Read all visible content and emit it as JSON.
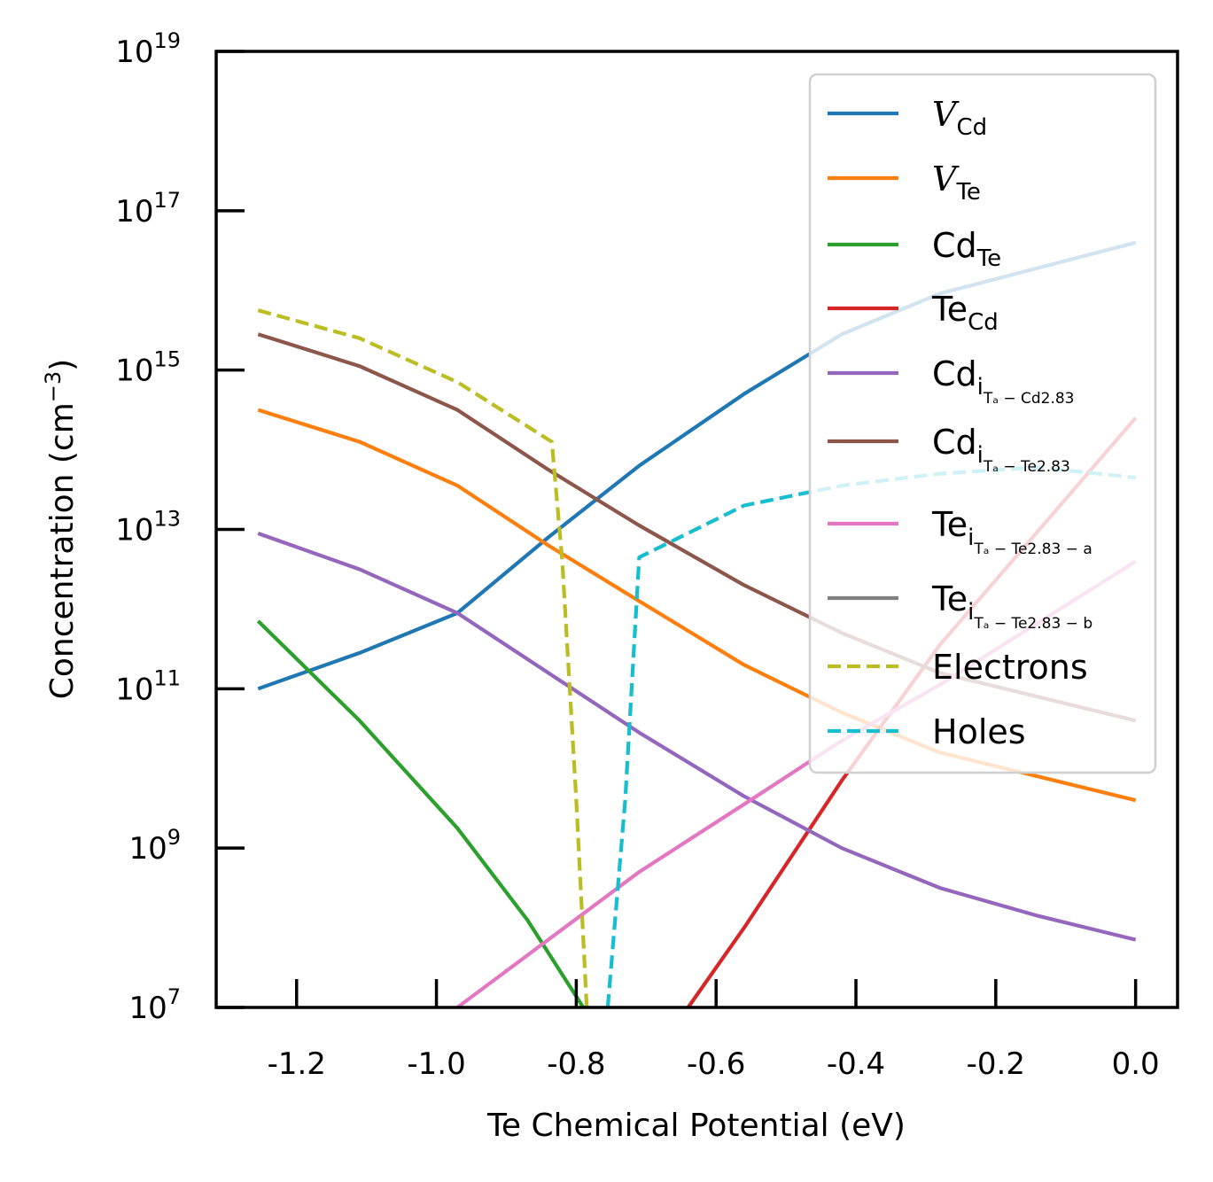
{
  "chart_data": {
    "type": "line",
    "xlabel": "Te Chemical Potential (eV)",
    "ylabel": "Concentration (cm",
    "ylabel_exp": "−3",
    "ylabel_close": ")",
    "xlim": [
      -1.315,
      0.06
    ],
    "ylim_log10": [
      7,
      19
    ],
    "y_scale": "log",
    "grid": false,
    "legend_position": "top-right",
    "x_ticks": [
      {
        "v": -1.2,
        "label": "-1.2"
      },
      {
        "v": -1.0,
        "label": "-1.0"
      },
      {
        "v": -0.8,
        "label": "-0.8"
      },
      {
        "v": -0.6,
        "label": "-0.6"
      },
      {
        "v": -0.4,
        "label": "-0.4"
      },
      {
        "v": -0.2,
        "label": "-0.2"
      },
      {
        "v": 0.0,
        "label": "0.0"
      }
    ],
    "y_ticks": [
      {
        "exp": 7,
        "base": "10",
        "sup": "7"
      },
      {
        "exp": 9,
        "base": "10",
        "sup": "9"
      },
      {
        "exp": 11,
        "base": "10",
        "sup": "11"
      },
      {
        "exp": 13,
        "base": "10",
        "sup": "13"
      },
      {
        "exp": 15,
        "base": "10",
        "sup": "15"
      },
      {
        "exp": 17,
        "base": "10",
        "sup": "17"
      },
      {
        "exp": 19,
        "base": "10",
        "sup": "19"
      }
    ],
    "series": [
      {
        "key": "v_cd",
        "label_main": "V",
        "label_italic": true,
        "label_sub": "Cd",
        "label_sub2": "",
        "color": "#1f77b4",
        "dash": false,
        "points": [
          [
            -1.255,
            11.0
          ],
          [
            -1.11,
            11.45
          ],
          [
            -0.97,
            11.95
          ],
          [
            -0.84,
            12.9
          ],
          [
            -0.71,
            13.8
          ],
          [
            -0.56,
            14.7
          ],
          [
            -0.42,
            15.45
          ],
          [
            -0.28,
            15.96
          ],
          [
            0.0,
            16.6
          ]
        ]
      },
      {
        "key": "v_te",
        "label_main": "V",
        "label_italic": true,
        "label_sub": "Te",
        "label_sub2": "",
        "color": "#ff7f0e",
        "dash": false,
        "points": [
          [
            -1.255,
            14.5
          ],
          [
            -1.11,
            14.1
          ],
          [
            -0.97,
            13.55
          ],
          [
            -0.84,
            12.8
          ],
          [
            -0.71,
            12.1
          ],
          [
            -0.56,
            11.3
          ],
          [
            -0.42,
            10.7
          ],
          [
            -0.28,
            10.2
          ],
          [
            0.0,
            9.6
          ]
        ]
      },
      {
        "key": "cd_te",
        "label_main": "Cd",
        "label_italic": false,
        "label_sub": "Te",
        "label_sub2": "",
        "color": "#2ca02c",
        "dash": false,
        "points": [
          [
            -1.255,
            11.85
          ],
          [
            -1.11,
            10.6
          ],
          [
            -0.97,
            9.25
          ],
          [
            -0.87,
            8.1
          ],
          [
            -0.79,
            7.0
          ]
        ]
      },
      {
        "key": "te_cd",
        "label_main": "Te",
        "label_italic": false,
        "label_sub": "Cd",
        "label_sub2": "",
        "color": "#d62728",
        "dash": false,
        "points": [
          [
            -0.64,
            7.0
          ],
          [
            -0.56,
            8.0
          ],
          [
            -0.42,
            9.85
          ],
          [
            -0.28,
            11.55
          ],
          [
            0.0,
            14.4
          ]
        ]
      },
      {
        "key": "cd_i_cd",
        "label_main": "Cd",
        "label_italic": false,
        "label_sub": "i",
        "label_sub2": "Tₐ − Cd2.83",
        "color": "#9467bd",
        "dash": false,
        "points": [
          [
            -1.255,
            12.95
          ],
          [
            -1.11,
            12.5
          ],
          [
            -0.97,
            11.95
          ],
          [
            -0.84,
            11.2
          ],
          [
            -0.71,
            10.45
          ],
          [
            -0.56,
            9.65
          ],
          [
            -0.42,
            9.0
          ],
          [
            -0.28,
            8.5
          ],
          [
            -0.14,
            8.15
          ],
          [
            0.0,
            7.85
          ]
        ]
      },
      {
        "key": "cd_i_te",
        "label_main": "Cd",
        "label_italic": false,
        "label_sub": "i",
        "label_sub2": "Tₐ − Te2.83",
        "color": "#8c564b",
        "dash": false,
        "points": [
          [
            -1.255,
            15.45
          ],
          [
            -1.11,
            15.05
          ],
          [
            -0.97,
            14.5
          ],
          [
            -0.84,
            13.75
          ],
          [
            -0.71,
            13.05
          ],
          [
            -0.56,
            12.3
          ],
          [
            -0.42,
            11.7
          ],
          [
            -0.28,
            11.2
          ],
          [
            0.0,
            10.6
          ]
        ]
      },
      {
        "key": "te_i_a",
        "label_main": "Te",
        "label_italic": false,
        "label_sub": "i",
        "label_sub2": "Tₐ − Te2.83 − a",
        "color": "#e377c2",
        "dash": false,
        "points": [
          [
            -0.97,
            7.0
          ],
          [
            -0.84,
            7.85
          ],
          [
            -0.71,
            8.7
          ],
          [
            -0.56,
            9.55
          ],
          [
            -0.42,
            10.35
          ],
          [
            -0.28,
            11.05
          ],
          [
            0.0,
            12.6
          ]
        ]
      },
      {
        "key": "te_i_b",
        "label_main": "Te",
        "label_italic": false,
        "label_sub": "i",
        "label_sub2": "Tₐ − Te2.83 − b",
        "color": "#7f7f7f",
        "dash": false,
        "points": []
      },
      {
        "key": "electrons",
        "label_main": "Electrons",
        "label_italic": false,
        "label_sub": "",
        "label_sub2": "",
        "color": "#bcbd22",
        "dash": true,
        "points": [
          [
            -1.255,
            15.75
          ],
          [
            -1.11,
            15.4
          ],
          [
            -0.97,
            14.85
          ],
          [
            -0.835,
            14.1
          ],
          [
            -0.82,
            12.6
          ],
          [
            -0.8,
            9.6
          ],
          [
            -0.785,
            7.0
          ]
        ]
      },
      {
        "key": "holes",
        "label_main": "Holes",
        "label_italic": false,
        "label_sub": "",
        "label_sub2": "",
        "color": "#17becf",
        "dash": true,
        "points": [
          [
            -0.755,
            7.0
          ],
          [
            -0.73,
            9.6
          ],
          [
            -0.71,
            12.65
          ],
          [
            -0.56,
            13.3
          ],
          [
            -0.42,
            13.55
          ],
          [
            -0.28,
            13.7
          ],
          [
            -0.14,
            13.78
          ],
          [
            0.0,
            13.65
          ]
        ]
      }
    ]
  }
}
